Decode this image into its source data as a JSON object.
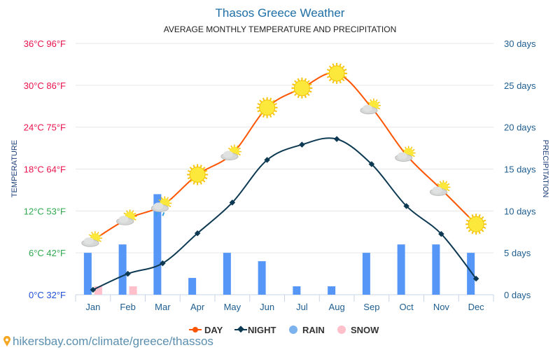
{
  "chart_data": {
    "type": "bar+line",
    "title": "Thasos Greece Weather",
    "subtitle": "AVERAGE MONTHLY TEMPERATURE AND PRECIPITATION",
    "ylabel_left": "TEMPERATURE",
    "ylabel_right": "PRECIPITATION",
    "categories": [
      "Jan",
      "Feb",
      "Mar",
      "Apr",
      "May",
      "Jun",
      "Jul",
      "Aug",
      "Sep",
      "Oct",
      "Nov",
      "Dec"
    ],
    "left_ticks": [
      "0°C 32°F",
      "6°C 42°F",
      "12°C 53°F",
      "18°C 64°F",
      "24°C 75°F",
      "30°C 86°F",
      "36°C 96°F"
    ],
    "left_tick_colors": [
      "#1f4fd6",
      "#2fa84f",
      "#2fa84f",
      "#e8114b",
      "#e8114b",
      "#e8114b",
      "#e8114b"
    ],
    "right_ticks": [
      "0 days",
      "5 days",
      "10 days",
      "15 days",
      "20 days",
      "25 days",
      "30 days"
    ],
    "ylim_left": [
      0,
      36
    ],
    "ylim_right": [
      0,
      30
    ],
    "grid": true,
    "legend_position": "bottom",
    "series": [
      {
        "name": "DAY",
        "kind": "line",
        "axis": "left",
        "color": "#ff5500",
        "values": [
          7.8,
          10.9,
          12.8,
          17.2,
          20.2,
          26.8,
          29.6,
          31.7,
          26.8,
          20.0,
          15.1,
          10.1
        ]
      },
      {
        "name": "NIGHT",
        "kind": "line",
        "axis": "left",
        "color": "#0d3a52",
        "values": [
          0.7,
          3.0,
          4.5,
          8.8,
          13.2,
          19.3,
          21.5,
          22.3,
          18.7,
          12.7,
          8.7,
          2.3
        ]
      },
      {
        "name": "RAIN",
        "kind": "bar",
        "axis": "right",
        "color": "#5596f7",
        "values": [
          5,
          6,
          12,
          2,
          5,
          4,
          1,
          1,
          5,
          6,
          6,
          5
        ]
      },
      {
        "name": "SNOW",
        "kind": "bar",
        "axis": "right",
        "color": "#ffbfcb",
        "values": [
          1,
          1,
          0,
          0,
          0,
          0,
          0,
          0,
          0,
          0,
          0,
          0
        ]
      }
    ],
    "weather_icons": [
      "sun-cloud",
      "sun-cloud",
      "sun-cloud-rain",
      "sun",
      "sun-cloud",
      "sun",
      "sun",
      "sun",
      "sun-cloud",
      "sun-cloud",
      "sun-cloud",
      "sun"
    ]
  },
  "legend": {
    "day": "DAY",
    "night": "NIGHT",
    "rain": "RAIN",
    "snow": "SNOW",
    "rain_color": "#7cb2ee"
  },
  "footer": {
    "url": "hikersbay.com/climate/greece/thassos"
  }
}
